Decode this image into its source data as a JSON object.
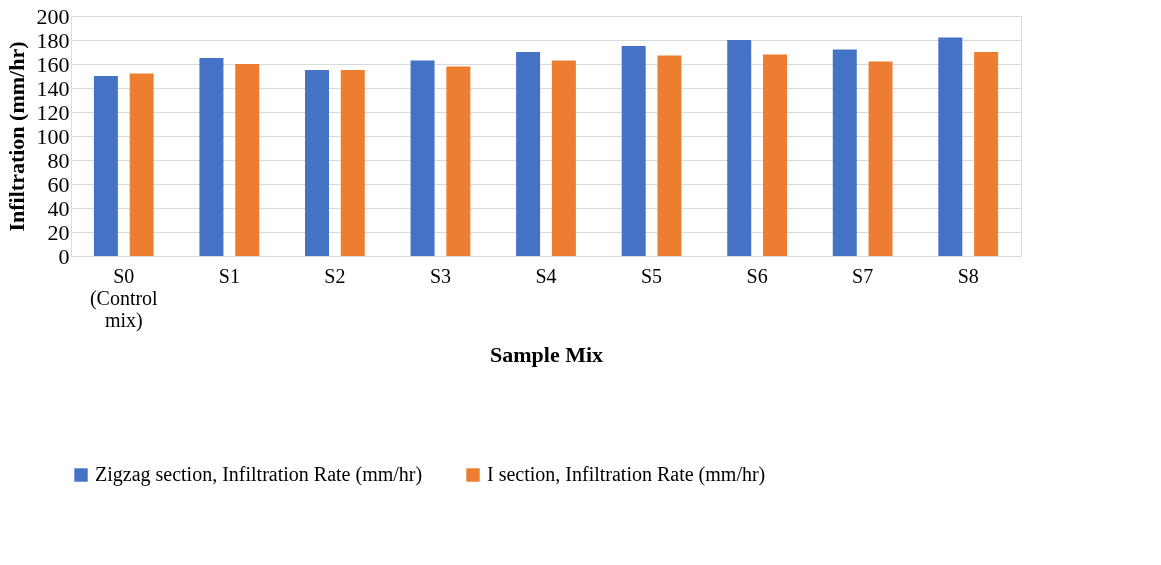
{
  "chart_data": {
    "type": "bar",
    "xlabel": "Sample Mix",
    "ylabel": "Infiltration (mm/hr)",
    "categories": [
      "S0 (Control mix)",
      "S1",
      "S2",
      "S3",
      "S4",
      "S5",
      "S6",
      "S7",
      "S8"
    ],
    "series": [
      {
        "name": "Zigzag section, Infiltration Rate (mm/hr)",
        "color": "#4472c4",
        "values": [
          150,
          165,
          155,
          163,
          170,
          175,
          180,
          172,
          182
        ]
      },
      {
        "name": "I section, Infiltration Rate (mm/hr)",
        "color": "#ed7d31",
        "values": [
          152,
          160,
          155,
          158,
          163,
          167,
          168,
          162,
          170
        ]
      }
    ],
    "ylim": [
      0,
      200
    ],
    "yticks": [
      0,
      20,
      40,
      60,
      80,
      100,
      120,
      140,
      160,
      180,
      200
    ],
    "grid": "y",
    "legend": "bottom"
  }
}
